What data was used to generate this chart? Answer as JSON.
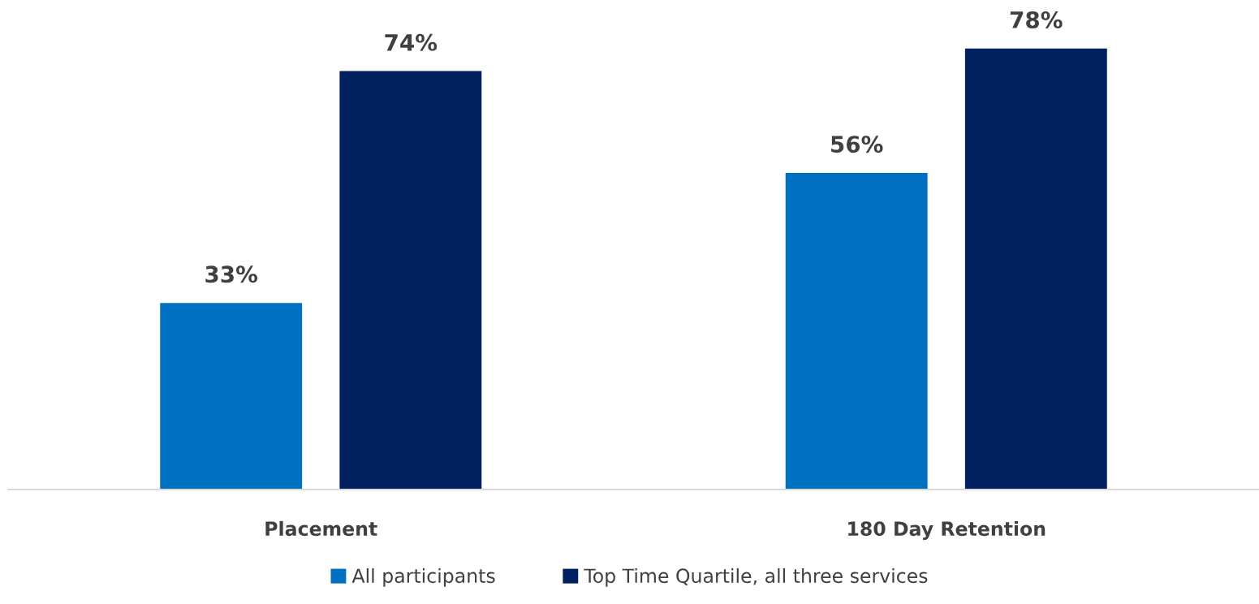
{
  "chart_data": {
    "type": "bar",
    "categories": [
      "Placement",
      "180 Day Retention"
    ],
    "series": [
      {
        "name": "All participants",
        "color": "#0070c0",
        "values": [
          33,
          56
        ],
        "value_labels": [
          "33%",
          "56%"
        ]
      },
      {
        "name": "Top Time Quartile, all three services",
        "color": "#002060",
        "values": [
          74,
          78
        ],
        "value_labels": [
          "74%",
          "78%"
        ]
      }
    ],
    "tick_labels": "x",
    "legend": "bottom"
  }
}
